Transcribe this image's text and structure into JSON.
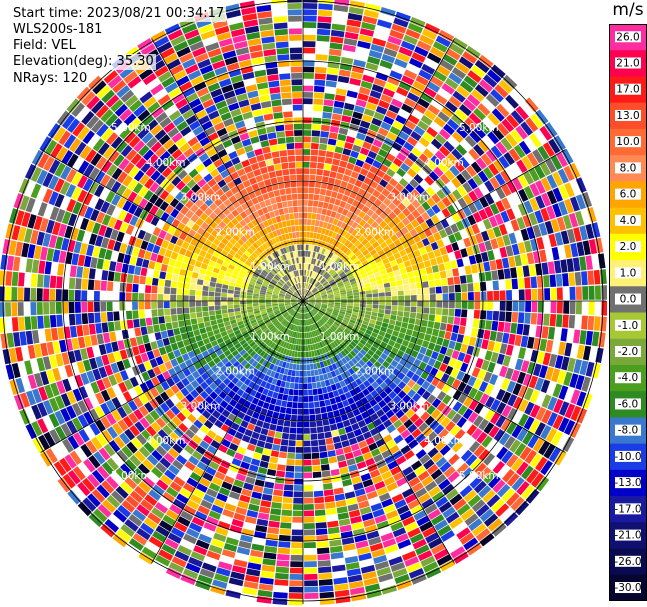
{
  "header": {
    "start_time": "Start time: 2023/08/21 00:34:17",
    "site": "WLS200s-181",
    "field": "Field: VEL",
    "elevation": "Elevation(deg): 35.30",
    "nrays": "NRays: 120"
  },
  "colorbar": {
    "unit": "m/s",
    "ticks": [
      "26.0",
      "21.0",
      "17.0",
      "13.0",
      "10.0",
      "8.0",
      "6.0",
      "4.0",
      "2.0",
      "1.0",
      "0.0",
      "-1.0",
      "-2.0",
      "-4.0",
      "-6.0",
      "-8.0",
      "-10.0",
      "-13.0",
      "-17.0",
      "-21.0",
      "-26.0",
      "-30.0"
    ],
    "colors": [
      "#ff2da0",
      "#ff0050",
      "#ff1a1a",
      "#ff4d2a",
      "#ff6a35",
      "#ff8a55",
      "#ffa500",
      "#ffc000",
      "#ffff00",
      "#fff176",
      "#707070",
      "#a6c832",
      "#7aa83a",
      "#4c9e1e",
      "#2e8b22",
      "#3a78d0",
      "#1a3ce6",
      "#0000c8",
      "#1a1aa0",
      "#101070",
      "#0a0a50",
      "#050530"
    ]
  },
  "range_rings": {
    "labels": [
      "1.00km",
      "2.00km",
      "3.00km",
      "4.00km",
      "5.00km"
    ]
  }
}
